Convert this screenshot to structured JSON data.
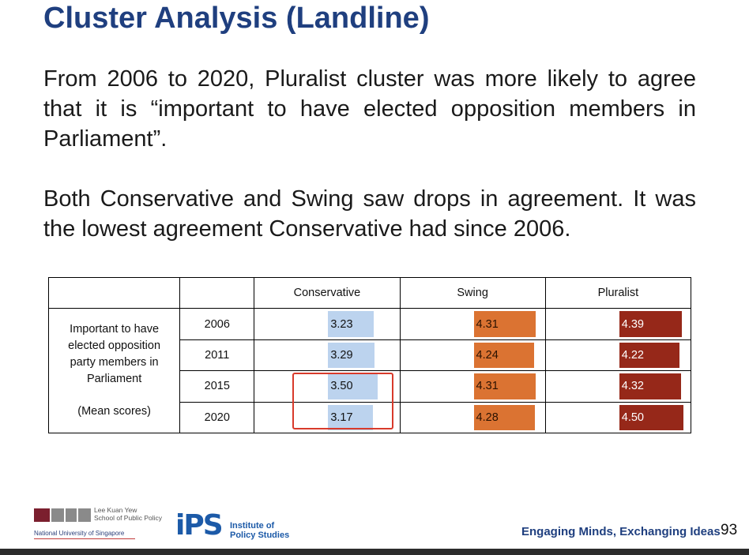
{
  "title": "Cluster Analysis (Landline)",
  "paragraphs": [
    "From 2006 to 2020, Pluralist cluster was more likely to agree that it is “important to have elected opposition members in Parliament”.",
    "Both Conservative and Swing saw drops in agreement. It was the lowest agreement Conservative had since 2006."
  ],
  "table": {
    "columns": [
      "Conservative",
      "Swing",
      "Pluralist"
    ],
    "row_label_lines": [
      "Important to have",
      "elected opposition",
      "party members in",
      "Parliament",
      "(Mean scores)"
    ],
    "rows": [
      {
        "year": "2006",
        "conservative": "3.23",
        "swing": "4.31",
        "pluralist": "4.39"
      },
      {
        "year": "2011",
        "conservative": "3.29",
        "swing": "4.24",
        "pluralist": "4.22"
      },
      {
        "year": "2015",
        "conservative": "3.50",
        "swing": "4.31",
        "pluralist": "4.32"
      },
      {
        "year": "2020",
        "conservative": "3.17",
        "swing": "4.28",
        "pluralist": "4.50"
      }
    ],
    "colors": {
      "conservative": "#bcd3ee",
      "swing": "#db7332",
      "pluralist": "#962819",
      "highlight": "#d83a2b"
    }
  },
  "footer": {
    "lky_line1": "Lee Kuan Yew",
    "lky_line2": "School of Public Policy",
    "nus": "National University of Singapore",
    "ips_logo": "iPS",
    "ips_line1": "Institute of",
    "ips_line2": "Policy Studies",
    "tagline": "Engaging Minds, Exchanging Ideas",
    "page_number": "93"
  }
}
